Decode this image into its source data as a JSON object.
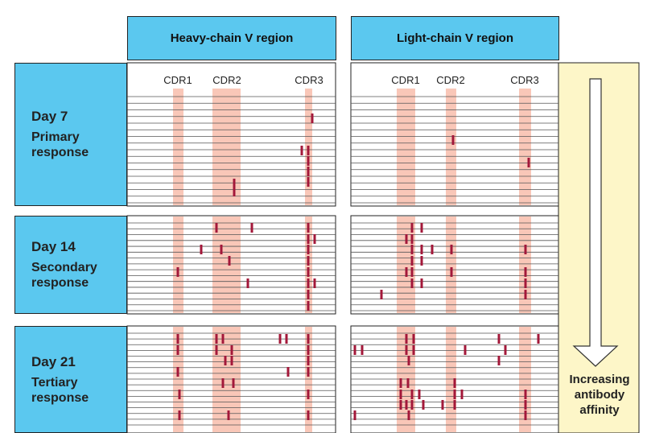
{
  "header": {
    "heavy": "Heavy-chain V region",
    "light": "Light-chain V region"
  },
  "cdr_labels": {
    "heavy": [
      "CDR1",
      "CDR2",
      "CDR3"
    ],
    "light": [
      "CDR1",
      "CDR2",
      "CDR3"
    ]
  },
  "rows": [
    {
      "day": "Day 7",
      "response": "Primary response"
    },
    {
      "day": "Day 14",
      "response": "Secondary response"
    },
    {
      "day": "Day 21",
      "response": "Tertiary response"
    }
  ],
  "arrow_label": "Increasing antibody affinity"
}
